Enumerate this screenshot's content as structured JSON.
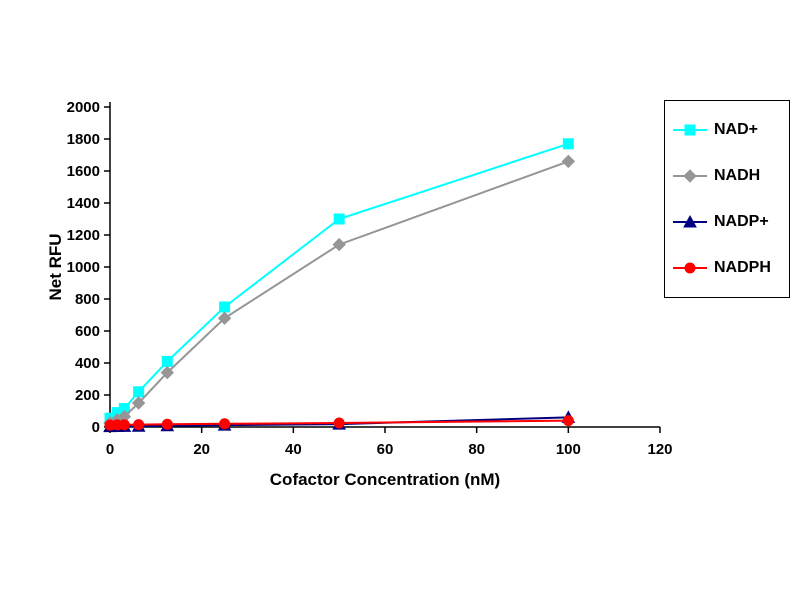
{
  "chart_data": {
    "type": "line",
    "title": "",
    "xlabel": "Cofactor Concentration (nM)",
    "ylabel": "Net RFU",
    "xlim": [
      0,
      120
    ],
    "ylim": [
      0,
      2000
    ],
    "x_ticks": [
      0,
      20,
      40,
      60,
      80,
      100,
      120
    ],
    "y_ticks": [
      0,
      200,
      400,
      600,
      800,
      1000,
      1200,
      1400,
      1600,
      1800,
      2000
    ],
    "grid": false,
    "legend_position": "right",
    "x": [
      0,
      1.56,
      3.13,
      6.25,
      12.5,
      25,
      50,
      100
    ],
    "series": [
      {
        "name": "NAD+",
        "color": "#00FFFF",
        "marker": "square",
        "values": [
          55,
          90,
          115,
          220,
          410,
          750,
          1300,
          1770
        ]
      },
      {
        "name": "NADH",
        "color": "#969696",
        "marker": "diamond",
        "values": [
          25,
          45,
          65,
          150,
          340,
          680,
          1140,
          1660
        ]
      },
      {
        "name": "NADP+",
        "color": "#000080",
        "marker": "triangle",
        "values": [
          2,
          3,
          4,
          5,
          8,
          12,
          18,
          60
        ]
      },
      {
        "name": "NADPH",
        "color": "#FF0000",
        "marker": "circle",
        "values": [
          12,
          13,
          14,
          15,
          17,
          20,
          25,
          40
        ]
      }
    ]
  }
}
